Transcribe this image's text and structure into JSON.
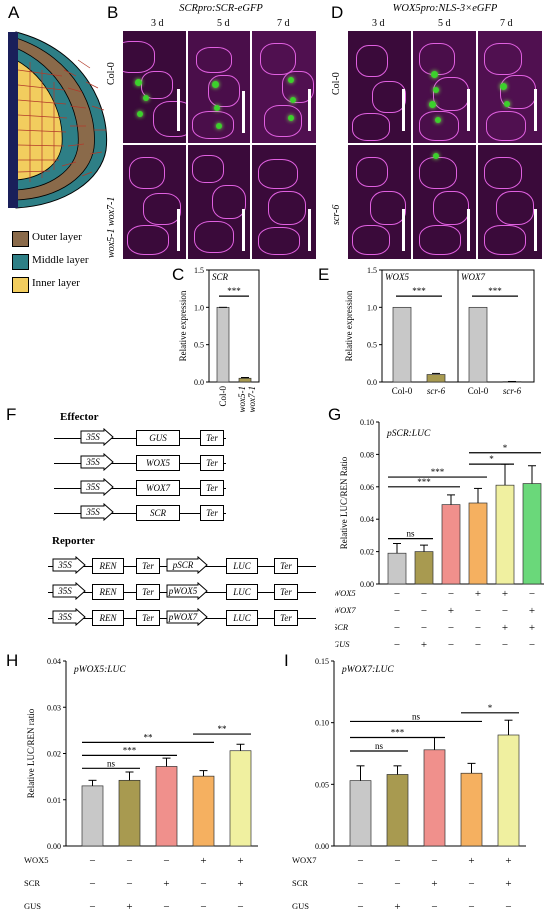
{
  "panels": {
    "A": {
      "label": "A",
      "legend": [
        {
          "text": "Outer layer",
          "color": "#8a6a4a"
        },
        {
          "text": "Middle layer",
          "color": "#2e7f86"
        },
        {
          "text": "Inner layer",
          "color": "#f2cd5e"
        }
      ]
    },
    "B": {
      "label": "B",
      "title": "SCRpro:SCR-eGFP",
      "times": [
        "3 d",
        "5 d",
        "7 d"
      ],
      "rows": [
        "Col-0",
        "wox5-1 wox7-1"
      ]
    },
    "C": {
      "label": "C"
    },
    "D": {
      "label": "D",
      "title": "WOX5pro:NLS-3×eGFP",
      "times": [
        "3 d",
        "5 d",
        "7 d"
      ],
      "rows": [
        "Col-0",
        "scr-6"
      ]
    },
    "E": {
      "label": "E"
    },
    "F": {
      "label": "F",
      "effector_title": "Effector",
      "reporter_title": "Reporter",
      "effectors": [
        {
          "promoter": "35S",
          "gene": "GUS",
          "ter": "Ter"
        },
        {
          "promoter": "35S",
          "gene": "WOX5",
          "ter": "Ter"
        },
        {
          "promoter": "35S",
          "gene": "WOX7",
          "ter": "Ter"
        },
        {
          "promoter": "35S",
          "gene": "SCR",
          "ter": "Ter"
        }
      ],
      "reporters": [
        {
          "p1": "35S",
          "g1": "REN",
          "t1": "Ter",
          "p2": "pSCR",
          "g2": "LUC",
          "t2": "Ter"
        },
        {
          "p1": "35S",
          "g1": "REN",
          "t1": "Ter",
          "p2": "pWOX5",
          "g2": "LUC",
          "t2": "Ter"
        },
        {
          "p1": "35S",
          "g1": "REN",
          "t1": "Ter",
          "p2": "pWOX7",
          "g2": "LUC",
          "t2": "Ter"
        }
      ]
    },
    "G": {
      "label": "G"
    },
    "H": {
      "label": "H"
    },
    "I": {
      "label": "I"
    }
  },
  "chart_data": [
    {
      "id": "C",
      "type": "bar",
      "title": "SCR",
      "ylabel": "Relative expression",
      "categories": [
        "Col-0",
        "wox5-1 wox7-1"
      ],
      "values": [
        1.0,
        0.05
      ],
      "errors": [
        0.0,
        0.01
      ],
      "ylim": [
        0,
        1.5
      ],
      "yticks": [
        "0.0",
        "0.5",
        "1.0",
        "1.5"
      ],
      "colors": [
        "#c8c8c8",
        "#a89a50"
      ],
      "sig": [
        {
          "from": 0,
          "to": 1,
          "text": "***"
        }
      ]
    },
    {
      "id": "E",
      "type": "bar",
      "ylabel": "Relative expression",
      "groups": [
        {
          "title": "WOX5",
          "categories": [
            "Col-0",
            "scr-6"
          ],
          "values": [
            1.0,
            0.1
          ],
          "errors": [
            0.0,
            0.015
          ]
        },
        {
          "title": "WOX7",
          "categories": [
            "Col-0",
            "scr-6"
          ],
          "values": [
            1.0,
            0.005
          ],
          "errors": [
            0.0,
            0.002
          ]
        }
      ],
      "ylim": [
        0,
        1.5
      ],
      "yticks": [
        "0.0",
        "0.5",
        "1.0",
        "1.5"
      ],
      "colors": [
        "#c8c8c8",
        "#a89a50"
      ],
      "sig_text": "***"
    },
    {
      "id": "G",
      "type": "bar",
      "title": "pSCR:LUC",
      "ylabel": "Relative LUC/REN Ratio",
      "values": [
        0.019,
        0.02,
        0.049,
        0.05,
        0.061,
        0.062
      ],
      "errors": [
        0.006,
        0.004,
        0.006,
        0.009,
        0.013,
        0.011
      ],
      "colors": [
        "#c8c8c8",
        "#a89a50",
        "#f0908c",
        "#f5b060",
        "#f0f0a0",
        "#6ad87a"
      ],
      "ylim": [
        0,
        0.1
      ],
      "yticks": [
        "0.00",
        "0.02",
        "0.04",
        "0.06",
        "0.08",
        "0.10"
      ],
      "rows": [
        {
          "name": "WOX5",
          "signs": [
            "−",
            "−",
            "−",
            "+",
            "+",
            "−"
          ]
        },
        {
          "name": "WOX7",
          "signs": [
            "−",
            "−",
            "+",
            "−",
            "−",
            "+"
          ]
        },
        {
          "name": "SCR",
          "signs": [
            "−",
            "−",
            "−",
            "−",
            "+",
            "+"
          ]
        },
        {
          "name": "GUS",
          "signs": [
            "−",
            "+",
            "−",
            "−",
            "−",
            "−"
          ]
        }
      ],
      "sig": [
        {
          "from": 0,
          "to": 1,
          "text": "ns",
          "y": 0.028
        },
        {
          "from": 0,
          "to": 2,
          "text": "***",
          "y": 0.06
        },
        {
          "from": 0,
          "to": 3,
          "text": "***",
          "y": 0.066
        },
        {
          "from": 3,
          "to": 4,
          "text": "*",
          "y": 0.074
        },
        {
          "from": 3,
          "to": 5,
          "text": "*",
          "y": 0.081
        }
      ]
    },
    {
      "id": "H",
      "type": "bar",
      "title": "pWOX5:LUC",
      "ylabel": "Relative LUC/REN ratio",
      "values": [
        0.013,
        0.0142,
        0.0172,
        0.0151,
        0.0206
      ],
      "errors": [
        0.0012,
        0.0018,
        0.0018,
        0.0012,
        0.0014
      ],
      "colors": [
        "#c8c8c8",
        "#a89a50",
        "#f0908c",
        "#f5b060",
        "#f0f0a0"
      ],
      "ylim": [
        0,
        0.04
      ],
      "yticks": [
        "0.00",
        "0.01",
        "0.02",
        "0.03",
        "0.04"
      ],
      "rows": [
        {
          "name": "WOX5",
          "signs": [
            "−",
            "−",
            "−",
            "+",
            "+"
          ]
        },
        {
          "name": "SCR",
          "signs": [
            "−",
            "−",
            "+",
            "−",
            "+"
          ]
        },
        {
          "name": "GUS",
          "signs": [
            "−",
            "+",
            "−",
            "−",
            "−"
          ]
        }
      ],
      "sig": [
        {
          "from": 0,
          "to": 1,
          "text": "ns",
          "y": 0.0168
        },
        {
          "from": 0,
          "to": 2,
          "text": "***",
          "y": 0.0196
        },
        {
          "from": 0,
          "to": 3,
          "text": "**",
          "y": 0.0224
        },
        {
          "from": 3,
          "to": 4,
          "text": "**",
          "y": 0.0242
        }
      ]
    },
    {
      "id": "I",
      "type": "bar",
      "title": "pWOX7:LUC",
      "ylabel": "",
      "values": [
        0.053,
        0.058,
        0.078,
        0.059,
        0.09
      ],
      "errors": [
        0.012,
        0.007,
        0.01,
        0.008,
        0.012
      ],
      "colors": [
        "#c8c8c8",
        "#a89a50",
        "#f0908c",
        "#f5b060",
        "#f0f0a0"
      ],
      "ylim": [
        0,
        0.15
      ],
      "yticks": [
        "0.00",
        "0.05",
        "0.10",
        "0.15"
      ],
      "rows": [
        {
          "name": "WOX7",
          "signs": [
            "−",
            "−",
            "−",
            "+",
            "+"
          ]
        },
        {
          "name": "SCR",
          "signs": [
            "−",
            "−",
            "+",
            "−",
            "+"
          ]
        },
        {
          "name": "GUS",
          "signs": [
            "−",
            "+",
            "−",
            "−",
            "−"
          ]
        }
      ],
      "sig": [
        {
          "from": 0,
          "to": 1,
          "text": "ns",
          "y": 0.077
        },
        {
          "from": 0,
          "to": 2,
          "text": "***",
          "y": 0.088
        },
        {
          "from": 0,
          "to": 3,
          "text": "ns",
          "y": 0.101
        },
        {
          "from": 3,
          "to": 4,
          "text": "*",
          "y": 0.108
        }
      ]
    }
  ]
}
